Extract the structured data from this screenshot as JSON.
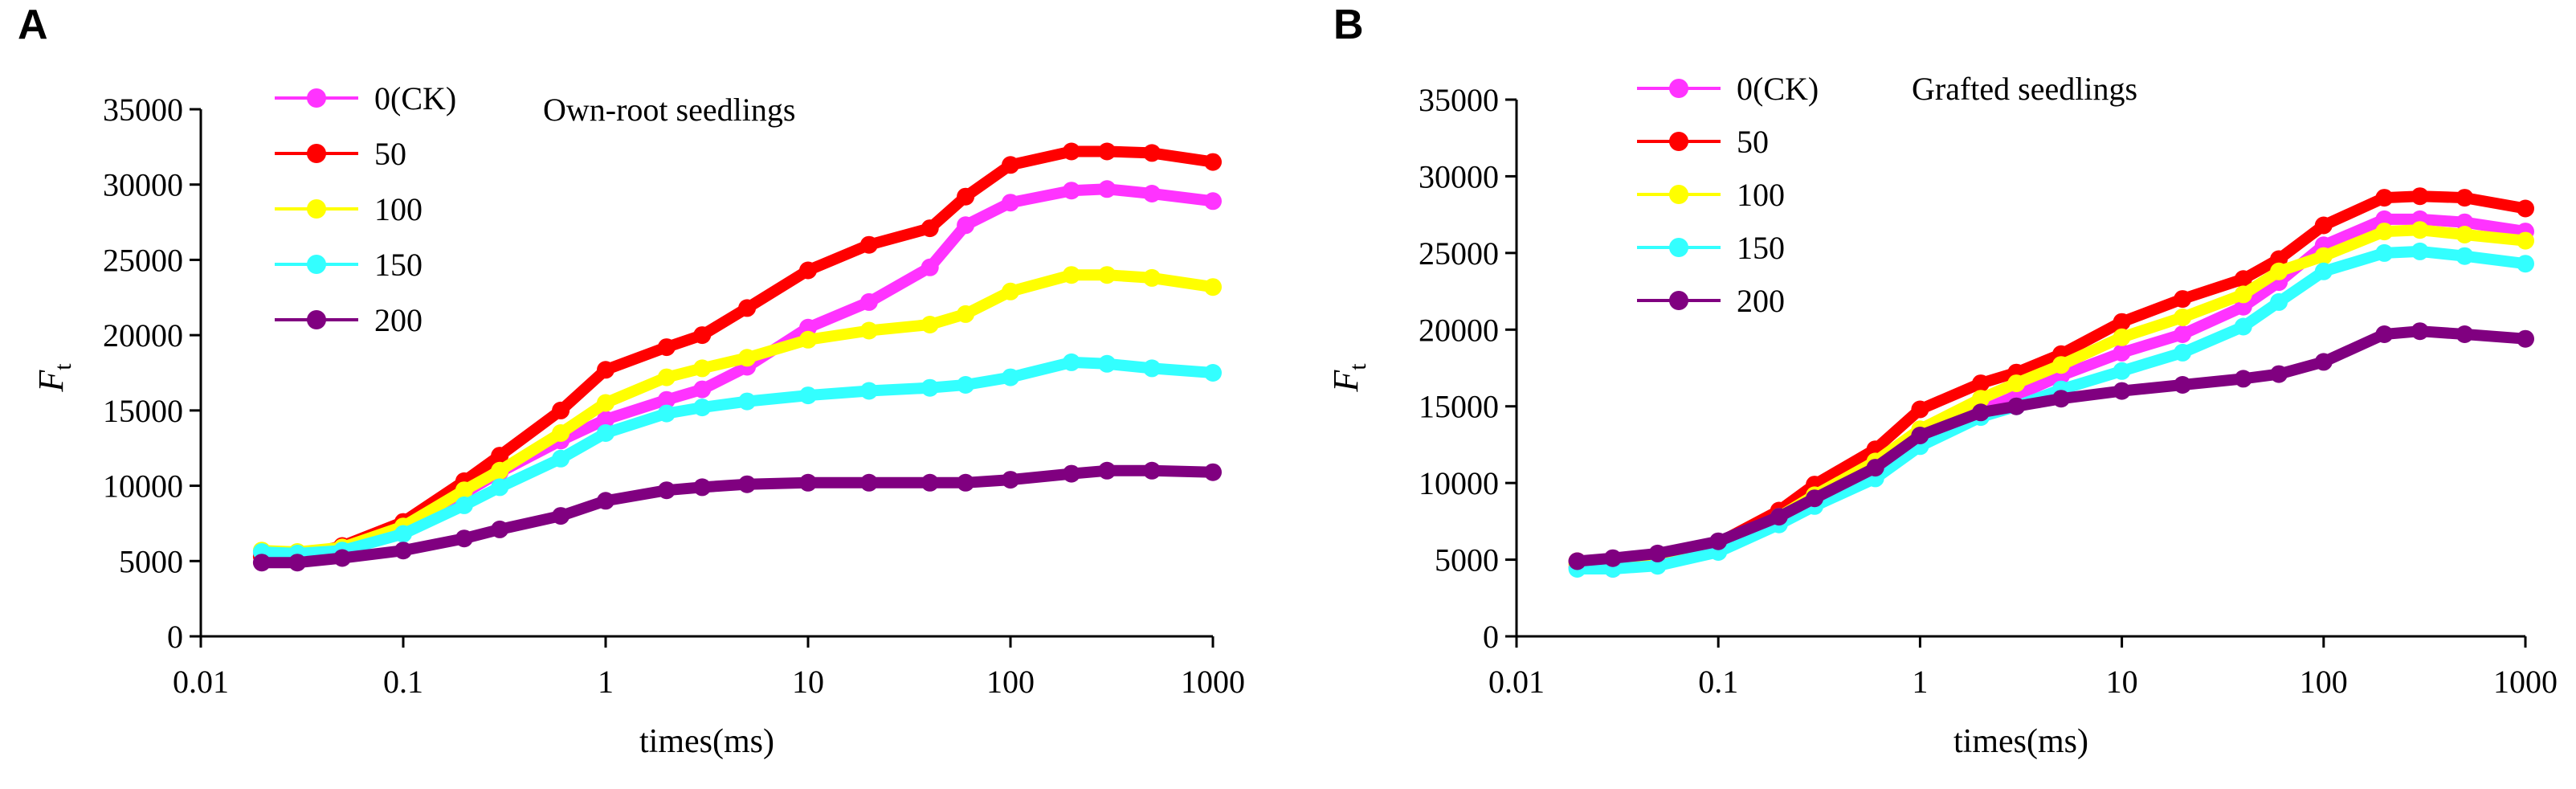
{
  "figure": {
    "panel_letters": [
      "A",
      "B"
    ]
  },
  "chart_data": [
    {
      "type": "line",
      "panel": "A",
      "title": "Own-root seedlings",
      "xlabel": "times(ms)",
      "ylabel": "F",
      "ylabel_sub": "t",
      "xscale": "log",
      "xlim": [
        0.01,
        1000
      ],
      "ylim": [
        0,
        35000
      ],
      "x_ticks": [
        "0.01",
        "0.1",
        "1",
        "10",
        "100",
        "1000"
      ],
      "y_ticks": [
        "0",
        "5000",
        "10000",
        "15000",
        "20000",
        "25000",
        "30000",
        "35000"
      ],
      "legend_position": "top-left",
      "x": [
        0.02,
        0.03,
        0.05,
        0.1,
        0.2,
        0.3,
        0.6,
        1,
        2,
        3,
        5,
        10,
        20,
        40,
        60,
        100,
        200,
        300,
        500,
        1000
      ],
      "series": [
        {
          "name": "0(CK)",
          "color": "#ff33ff",
          "values": [
            5500,
            5400,
            5800,
            7200,
            9500,
            10900,
            13000,
            14400,
            15700,
            16400,
            17900,
            20500,
            22200,
            24500,
            27300,
            28800,
            29600,
            29700,
            29400,
            28900
          ]
        },
        {
          "name": "50",
          "color": "#ff0000",
          "values": [
            5300,
            5300,
            6000,
            7600,
            10300,
            12000,
            15000,
            17700,
            19200,
            20000,
            21800,
            24300,
            26000,
            27100,
            29200,
            31300,
            32200,
            32200,
            32100,
            31500
          ]
        },
        {
          "name": "100",
          "color": "#ffff00",
          "values": [
            5700,
            5600,
            5900,
            7300,
            9700,
            11000,
            13500,
            15500,
            17200,
            17800,
            18500,
            19700,
            20300,
            20700,
            21400,
            22900,
            24000,
            24000,
            23800,
            23200
          ]
        },
        {
          "name": "150",
          "color": "#33ffff",
          "values": [
            5600,
            5500,
            5700,
            6800,
            8700,
            9900,
            11800,
            13500,
            14800,
            15200,
            15600,
            16000,
            16300,
            16500,
            16700,
            17200,
            18200,
            18100,
            17800,
            17500
          ]
        },
        {
          "name": "200",
          "color": "#800080",
          "values": [
            4900,
            4900,
            5200,
            5700,
            6500,
            7100,
            8000,
            9000,
            9700,
            9900,
            10100,
            10200,
            10200,
            10200,
            10200,
            10400,
            10800,
            11000,
            11000,
            10900
          ]
        }
      ]
    },
    {
      "type": "line",
      "panel": "B",
      "title": "Grafted seedlings",
      "xlabel": "times(ms)",
      "ylabel": "F",
      "ylabel_sub": "t",
      "xscale": "log",
      "xlim": [
        0.01,
        1000
      ],
      "ylim": [
        0,
        35000
      ],
      "x_ticks": [
        "0.01",
        "0.1",
        "1",
        "10",
        "100",
        "1000"
      ],
      "y_ticks": [
        "0",
        "5000",
        "10000",
        "15000",
        "20000",
        "25000",
        "30000",
        "35000"
      ],
      "legend_position": "top-left",
      "x": [
        0.02,
        0.03,
        0.05,
        0.1,
        0.2,
        0.3,
        0.6,
        1,
        2,
        3,
        5,
        10,
        20,
        40,
        60,
        100,
        200,
        300,
        500,
        1000
      ],
      "series": [
        {
          "name": "0(CK)",
          "color": "#ff33ff",
          "values": [
            4500,
            4400,
            4700,
            5600,
            7400,
            8700,
            11000,
            12600,
            14700,
            15700,
            17000,
            18500,
            19700,
            21500,
            23100,
            25500,
            27200,
            27200,
            27000,
            26400
          ]
        },
        {
          "name": "50",
          "color": "#ff0000",
          "values": [
            4900,
            4900,
            5200,
            6100,
            8200,
            9900,
            12200,
            14800,
            16500,
            17200,
            18400,
            20500,
            22000,
            23300,
            24600,
            26800,
            28600,
            28700,
            28600,
            27900
          ]
        },
        {
          "name": "100",
          "color": "#ffff00",
          "values": [
            4700,
            4600,
            4900,
            5800,
            7800,
            9200,
            11400,
            13500,
            15500,
            16500,
            17700,
            19500,
            20800,
            22300,
            23800,
            24800,
            26400,
            26500,
            26200,
            25800
          ]
        },
        {
          "name": "150",
          "color": "#33ffff",
          "values": [
            4400,
            4400,
            4600,
            5500,
            7300,
            8500,
            10300,
            12400,
            14300,
            15000,
            16100,
            17300,
            18500,
            20200,
            21800,
            23800,
            25000,
            25100,
            24800,
            24300
          ]
        },
        {
          "name": "200",
          "color": "#800080",
          "values": [
            4900,
            5100,
            5400,
            6200,
            7800,
            9000,
            11000,
            13100,
            14600,
            15000,
            15500,
            16000,
            16400,
            16800,
            17100,
            17900,
            19700,
            19900,
            19700,
            19400
          ]
        }
      ]
    }
  ]
}
